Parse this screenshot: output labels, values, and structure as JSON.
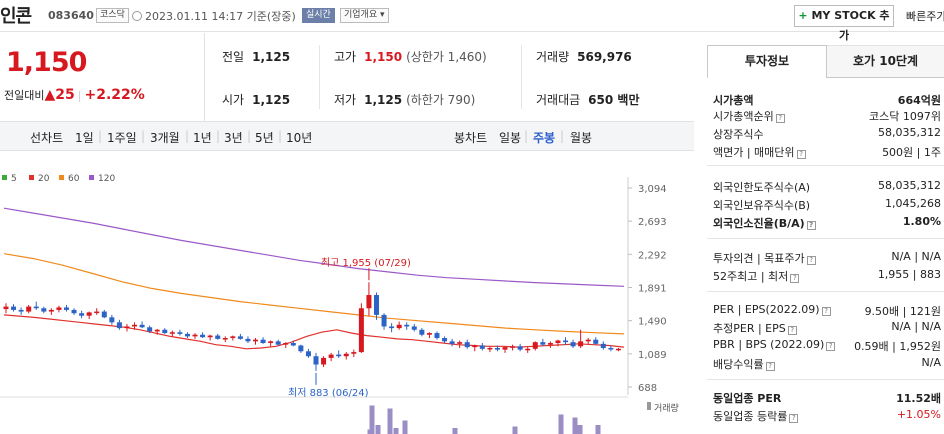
{
  "header": {
    "name": "인콘",
    "code": "083640",
    "market": "코스닥",
    "datetime": "2023.01.11 14:17 기준(장중)",
    "realtime": "실시간",
    "company_overview": "기업개요",
    "mystock_button": "MY STOCK 추가",
    "quick_search": "빠른주가"
  },
  "price": {
    "current": "1,150",
    "change_label": "전일대비",
    "change": "25",
    "change_pct": "+2.22%"
  },
  "stats": {
    "prev_close_label": "전일",
    "prev_close": "1,125",
    "open_label": "시가",
    "open": "1,125",
    "high_label": "고가",
    "high": "1,150",
    "upper_limit": "(상한가 1,460)",
    "low_label": "저가",
    "low": "1,125",
    "lower_limit": "(하한가 790)",
    "volume_label": "거래량",
    "volume": "569,976",
    "amount_label": "거래대금",
    "amount": "650 백만"
  },
  "period_bar": {
    "line_chart_label": "선차트",
    "line_periods": [
      "1일",
      "1주일",
      "3개월",
      "1년",
      "3년",
      "5년",
      "10년"
    ],
    "candle_label": "봉차트",
    "candle_periods": [
      "일봉",
      "주봉",
      "월봉"
    ],
    "active_candle": "주봉"
  },
  "chart_data": {
    "type": "candlestick",
    "legend": [
      "5",
      "20",
      "60",
      "120"
    ],
    "colors": {
      "ma5": "#3cab3c",
      "ma20": "#e0312d",
      "ma60": "#f08a1c",
      "ma120": "#9b59c8",
      "up": "#d7181f",
      "down": "#2b63c6",
      "volume": "#9b8ec4"
    },
    "y_ticks": [
      "3,094",
      "2,693",
      "2,292",
      "1,891",
      "1,490",
      "1,089",
      "688"
    ],
    "ylim": [
      688,
      3094
    ],
    "max_annotation": "최고 1,955 (07/29)",
    "min_annotation": "최저 883 (06/24)",
    "volume_label": "거래량",
    "ma120": [
      2850,
      2790,
      2730,
      2670,
      2600,
      2530,
      2460,
      2400,
      2340,
      2280,
      2220,
      2170,
      2120,
      2080,
      2040,
      2010,
      1990,
      1970,
      1950,
      1935,
      1920,
      1905
    ],
    "ma60": [
      2300,
      2240,
      2160,
      2060,
      1960,
      1880,
      1820,
      1770,
      1720,
      1680,
      1640,
      1600,
      1560,
      1520,
      1490,
      1460,
      1430,
      1400,
      1380,
      1360,
      1345,
      1330
    ],
    "ma20": [
      1560,
      1545,
      1530,
      1510,
      1490,
      1470,
      1450,
      1430,
      1410,
      1380,
      1340,
      1300,
      1270,
      1240,
      1200,
      1180,
      1150,
      1160,
      1180,
      1230,
      1300,
      1350,
      1380,
      1340,
      1310,
      1290,
      1270,
      1260,
      1240,
      1220,
      1200,
      1190,
      1180,
      1180,
      1170,
      1180,
      1190,
      1200,
      1210,
      1200,
      1190,
      1170
    ],
    "candles": [
      [
        1630,
        1700,
        1580,
        1660
      ],
      [
        1660,
        1690,
        1600,
        1620
      ],
      [
        1620,
        1650,
        1560,
        1600
      ],
      [
        1600,
        1680,
        1580,
        1660
      ],
      [
        1660,
        1720,
        1620,
        1640
      ],
      [
        1640,
        1660,
        1580,
        1600
      ],
      [
        1600,
        1640,
        1560,
        1620
      ],
      [
        1620,
        1670,
        1590,
        1650
      ],
      [
        1650,
        1680,
        1600,
        1620
      ],
      [
        1620,
        1640,
        1560,
        1580
      ],
      [
        1580,
        1610,
        1520,
        1550
      ],
      [
        1550,
        1600,
        1510,
        1590
      ],
      [
        1590,
        1640,
        1560,
        1600
      ],
      [
        1600,
        1620,
        1520,
        1530
      ],
      [
        1530,
        1560,
        1440,
        1470
      ],
      [
        1470,
        1500,
        1380,
        1400
      ],
      [
        1400,
        1450,
        1360,
        1420
      ],
      [
        1420,
        1470,
        1380,
        1440
      ],
      [
        1440,
        1480,
        1400,
        1410
      ],
      [
        1410,
        1430,
        1340,
        1360
      ],
      [
        1360,
        1390,
        1320,
        1380
      ],
      [
        1380,
        1400,
        1330,
        1340
      ],
      [
        1340,
        1370,
        1300,
        1350
      ],
      [
        1350,
        1380,
        1310,
        1330
      ],
      [
        1330,
        1350,
        1280,
        1300
      ],
      [
        1300,
        1340,
        1270,
        1320
      ],
      [
        1320,
        1350,
        1280,
        1290
      ],
      [
        1290,
        1320,
        1250,
        1310
      ],
      [
        1310,
        1330,
        1260,
        1270
      ],
      [
        1270,
        1300,
        1230,
        1280
      ],
      [
        1280,
        1310,
        1250,
        1300
      ],
      [
        1300,
        1330,
        1260,
        1270
      ],
      [
        1270,
        1300,
        1220,
        1240
      ],
      [
        1240,
        1280,
        1200,
        1260
      ],
      [
        1260,
        1290,
        1210,
        1220
      ],
      [
        1220,
        1250,
        1180,
        1240
      ],
      [
        1240,
        1260,
        1190,
        1200
      ],
      [
        1200,
        1230,
        1160,
        1220
      ],
      [
        1220,
        1250,
        1180,
        1190
      ],
      [
        1190,
        1200,
        1100,
        1120
      ],
      [
        1120,
        1150,
        1040,
        1060
      ],
      [
        1060,
        1100,
        883,
        960
      ],
      [
        960,
        1060,
        930,
        1040
      ],
      [
        1040,
        1100,
        1000,
        1080
      ],
      [
        1080,
        1130,
        1040,
        1060
      ],
      [
        1060,
        1110,
        1020,
        1090
      ],
      [
        1090,
        1140,
        1050,
        1110
      ],
      [
        1110,
        1700,
        1100,
        1640
      ],
      [
        1640,
        1955,
        1550,
        1800
      ],
      [
        1800,
        1830,
        1500,
        1560
      ],
      [
        1560,
        1580,
        1380,
        1420
      ],
      [
        1420,
        1460,
        1350,
        1400
      ],
      [
        1400,
        1480,
        1380,
        1440
      ],
      [
        1440,
        1470,
        1380,
        1420
      ],
      [
        1420,
        1450,
        1360,
        1380
      ],
      [
        1380,
        1400,
        1300,
        1320
      ],
      [
        1320,
        1350,
        1280,
        1340
      ],
      [
        1340,
        1360,
        1260,
        1280
      ],
      [
        1280,
        1300,
        1220,
        1240
      ],
      [
        1240,
        1270,
        1180,
        1210
      ],
      [
        1210,
        1250,
        1160,
        1230
      ],
      [
        1230,
        1260,
        1150,
        1170
      ],
      [
        1170,
        1200,
        1120,
        1190
      ],
      [
        1190,
        1220,
        1130,
        1150
      ],
      [
        1150,
        1180,
        1110,
        1160
      ],
      [
        1160,
        1190,
        1120,
        1140
      ],
      [
        1140,
        1170,
        1100,
        1170
      ],
      [
        1170,
        1200,
        1130,
        1180
      ],
      [
        1180,
        1210,
        1120,
        1140
      ],
      [
        1140,
        1170,
        1100,
        1150
      ],
      [
        1150,
        1240,
        1130,
        1230
      ],
      [
        1230,
        1270,
        1180,
        1200
      ],
      [
        1200,
        1240,
        1160,
        1220
      ],
      [
        1220,
        1260,
        1180,
        1250
      ],
      [
        1250,
        1290,
        1200,
        1230
      ],
      [
        1230,
        1260,
        1160,
        1180
      ],
      [
        1180,
        1380,
        1160,
        1240
      ],
      [
        1240,
        1280,
        1200,
        1260
      ],
      [
        1260,
        1290,
        1200,
        1210
      ],
      [
        1210,
        1240,
        1140,
        1160
      ],
      [
        1160,
        1190,
        1120,
        1150
      ],
      [
        1140,
        1160,
        1120,
        1150
      ]
    ],
    "volumes": [
      [
        370,
        0.15
      ],
      [
        372,
        0.95
      ],
      [
        378,
        0.3
      ],
      [
        390,
        0.85
      ],
      [
        396,
        0.2
      ],
      [
        405,
        0.45
      ],
      [
        455,
        0.2
      ],
      [
        515,
        0.25
      ],
      [
        561,
        0.65
      ],
      [
        575,
        0.55
      ],
      [
        580,
        0.3
      ],
      [
        598,
        0.3
      ]
    ]
  },
  "panel": {
    "tab_active": "투자정보",
    "tab_other": "호가 10단계",
    "rows": [
      {
        "k": "시가총액",
        "v": "664억원",
        "bold": true
      },
      {
        "k": "시가총액순위",
        "v": "코스닥 1097위"
      },
      {
        "k": "상장주식수",
        "v": "58,035,312"
      },
      {
        "k": "액면가 | 매매단위",
        "v": "500원 | 1주"
      },
      {
        "k": "외국인한도주식수(A)",
        "v": "58,035,312"
      },
      {
        "k": "외국인보유주식수(B)",
        "v": "1,045,268"
      },
      {
        "k": "외국인소진율(B/A)",
        "v": "1.80%",
        "bold": true
      },
      {
        "k": "투자의견 | 목표주가",
        "v": "N/A | N/A"
      },
      {
        "k": "52주최고 | 최저",
        "v": "1,955 | 883"
      },
      {
        "k": "PER | EPS(2022.09)",
        "v": "9.50배 | 121원"
      },
      {
        "k": "추정PER | EPS",
        "v": "N/A | N/A"
      },
      {
        "k": "PBR | BPS (2022.09)",
        "v": "0.59배 | 1,952원"
      },
      {
        "k": "배당수익률",
        "v": "N/A"
      },
      {
        "k": "동일업종 PER",
        "v": "11.52배",
        "bold": true
      },
      {
        "k": "동일업종 등락률",
        "v": "+1.05%",
        "red": true
      }
    ]
  }
}
